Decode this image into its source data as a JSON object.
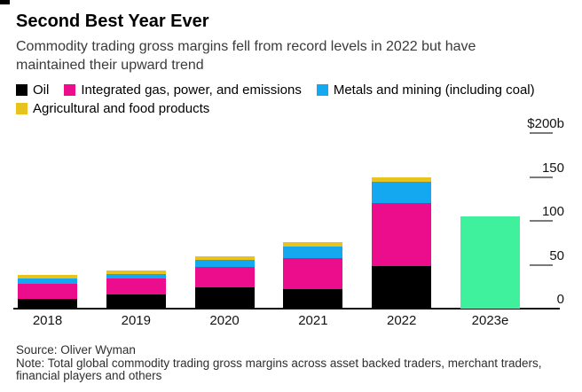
{
  "header": {
    "title": "Second Best Year Ever",
    "subtitle": "Commodity trading gross margins fell from record levels in 2022 but have\nmaintained their upward trend"
  },
  "legend": [
    {
      "label": "Oil",
      "color": "#000000"
    },
    {
      "label": "Integrated gas, power, and emissions",
      "color": "#EC0D8C"
    },
    {
      "label": "Metals and mining (including coal)",
      "color": "#14A8F0"
    },
    {
      "label": "Agricultural and food products",
      "color": "#E9C31D"
    }
  ],
  "chart_data": {
    "type": "bar",
    "stacked": true,
    "title": "Second Best Year Ever",
    "categories": [
      "2018",
      "2019",
      "2020",
      "2021",
      "2022",
      "2023e"
    ],
    "series": [
      {
        "name": "Oil",
        "color": "#000000",
        "values": [
          11,
          16,
          24,
          22,
          48,
          null
        ]
      },
      {
        "name": "Integrated gas, power, and emissions",
        "color": "#EC0D8C",
        "values": [
          17,
          18,
          23,
          36,
          72,
          null
        ]
      },
      {
        "name": "Metals and mining (including coal)",
        "color": "#14A8F0",
        "values": [
          6,
          5,
          9,
          13,
          24,
          null
        ]
      },
      {
        "name": "Agricultural and food products",
        "color": "#E9C31D",
        "values": [
          4,
          4,
          4,
          5,
          6,
          null
        ]
      },
      {
        "name": "2023e total estimate",
        "color": "#3FF19C",
        "values": [
          null,
          null,
          null,
          null,
          null,
          105
        ]
      }
    ],
    "xlabel": "",
    "ylabel": "",
    "ylim": [
      0,
      200
    ],
    "yticks": [
      {
        "value": 0,
        "label": "0"
      },
      {
        "value": 50,
        "label": "50"
      },
      {
        "value": 100,
        "label": "100"
      },
      {
        "value": 150,
        "label": "150"
      },
      {
        "value": 200,
        "label": "$200b"
      }
    ],
    "y_axis_side": "right",
    "grid": false,
    "legend_position": "top"
  },
  "footer": {
    "source": "Source: Oliver Wyman",
    "note": "Note: Total global commodity trading gross margins across asset backed traders, merchant traders,\nfinancial players and others"
  }
}
